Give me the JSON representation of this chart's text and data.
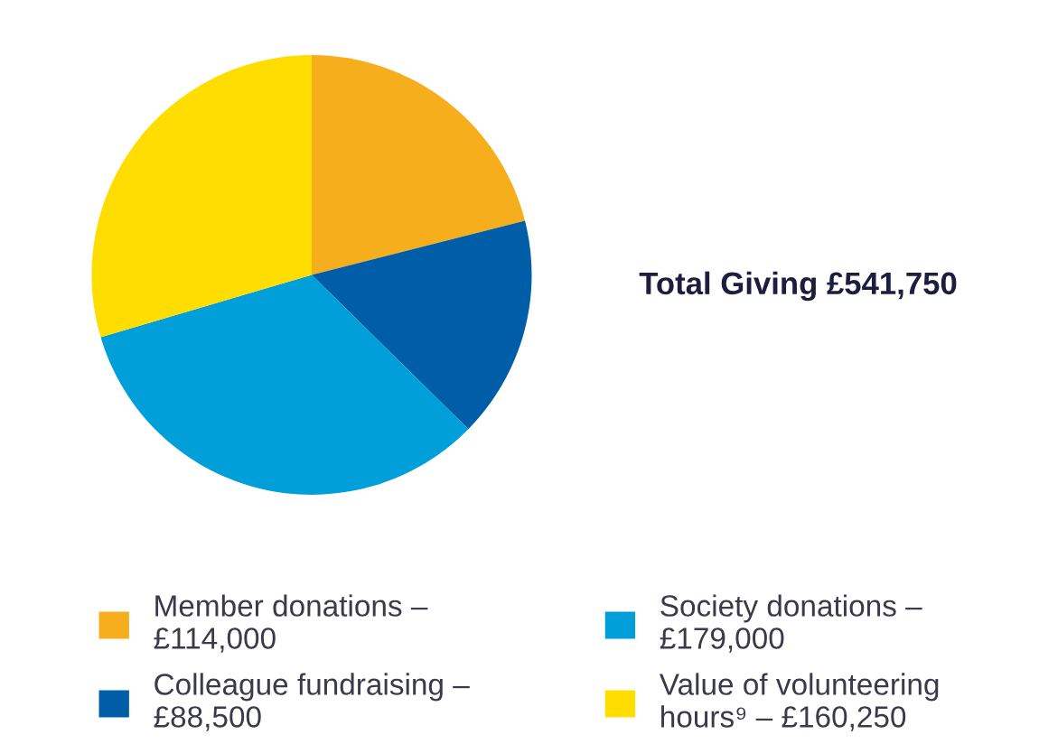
{
  "chart_data": {
    "type": "pie",
    "categories": [
      "Member donations –\n£114,000",
      "Colleague fundraising –\n£88,500",
      "Society donations –\n£179,000",
      "Value of volunteering\nhours⁹ – £160,250"
    ],
    "values": [
      114000,
      88500,
      179000,
      160250
    ],
    "colors": [
      "#f6ae1c",
      "#005ea8",
      "#009fda",
      "#ffdd00"
    ],
    "annotations": [
      "Total Giving £541,750"
    ],
    "legend": "bottom"
  }
}
